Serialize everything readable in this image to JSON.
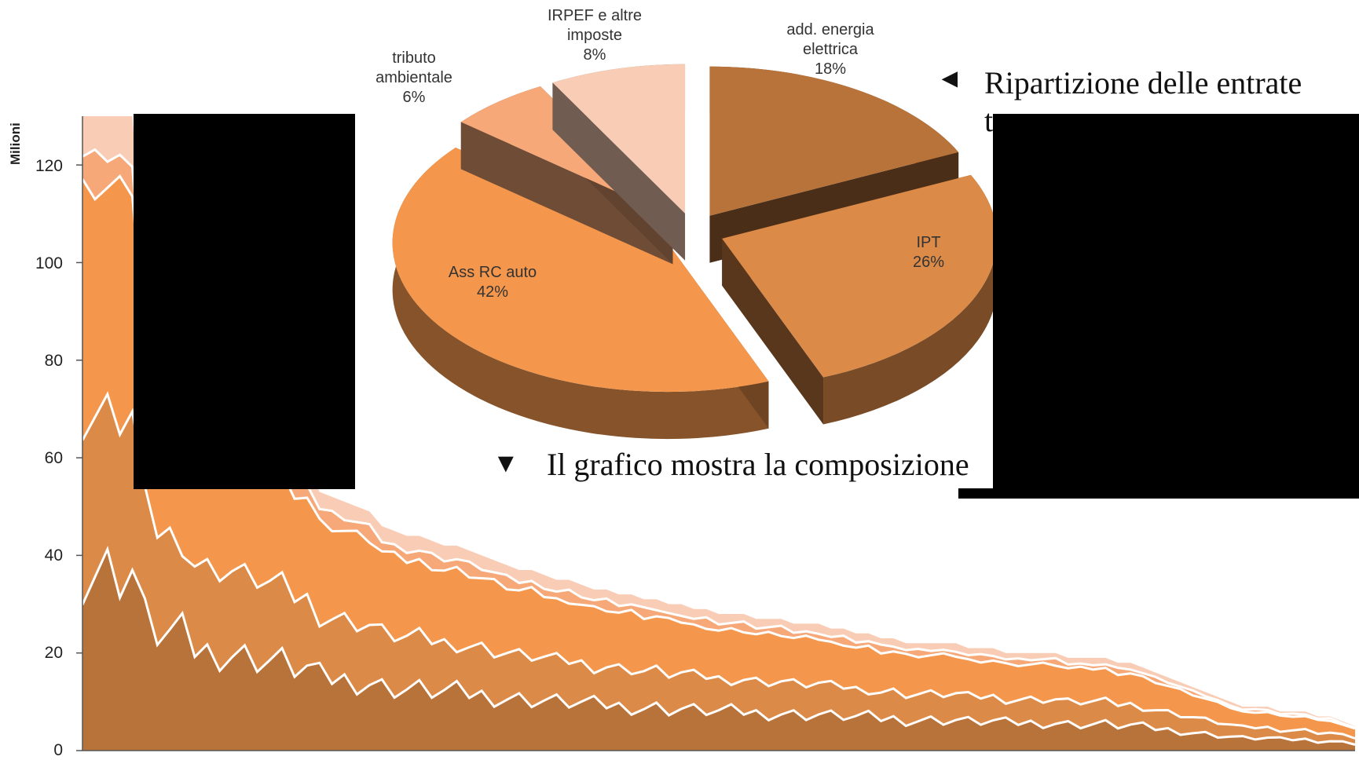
{
  "chart_data": [
    {
      "type": "area",
      "stacked": true,
      "ylabel": "Milioni",
      "ylim": [
        0,
        130
      ],
      "yticks": [
        0,
        20,
        40,
        60,
        80,
        100,
        120
      ],
      "grid": false,
      "colors": {
        "add_energia": "#b8733a",
        "ipt": "#dc8a47",
        "rc_auto": "#f4974c",
        "tributo": "#f6a878",
        "irpef": "#f9cdb5",
        "separator": "#ffffff"
      },
      "totals": [
        130,
        130,
        130,
        130,
        130,
        95,
        86,
        84,
        83,
        73,
        71,
        71,
        70,
        68,
        67,
        65,
        64,
        60,
        59,
        53,
        52,
        51,
        50,
        49,
        46,
        45,
        44,
        44,
        43,
        42,
        42,
        41,
        40,
        39,
        38,
        37,
        37,
        36,
        35,
        35,
        34,
        33,
        33,
        32,
        32,
        31,
        31,
        30,
        30,
        29,
        29,
        28,
        28,
        28,
        27,
        27,
        27,
        26,
        26,
        26,
        25,
        25,
        24,
        24,
        23,
        23,
        22,
        22,
        22,
        22,
        22,
        21,
        21,
        21,
        20,
        20,
        20,
        20,
        20,
        19,
        19,
        19,
        19,
        18,
        18,
        17,
        16,
        15,
        14,
        13,
        12,
        11,
        10,
        9,
        9,
        9,
        8,
        8,
        8,
        7,
        7,
        6,
        5
      ]
    },
    {
      "type": "pie",
      "slices": [
        {
          "label_l1": "add. energia",
          "label_l2": "elettrica",
          "pct": "18%",
          "value": 18,
          "color": "#b8733a"
        },
        {
          "label_l1": "IPT",
          "label_l2": "",
          "pct": "26%",
          "value": 26,
          "color": "#dc8a47"
        },
        {
          "label_l1": "Ass RC auto",
          "label_l2": "",
          "pct": "42%",
          "value": 42,
          "color": "#f4974c"
        },
        {
          "label_l1": "tributo",
          "label_l2": "ambientale",
          "pct": "6%",
          "value": 6,
          "color": "#f6a878"
        },
        {
          "label_l1": "IRPEF e altre",
          "label_l2": "imposte",
          "pct": "8%",
          "value": 8,
          "color": "#f9cdb5"
        }
      ]
    }
  ],
  "captions": {
    "pie_arrow": "◄",
    "pie_caption": "Ripartizione delle entrate",
    "pie_caption_cut": "t",
    "area_arrow": "▼",
    "area_caption": "Il grafico mostra la composizione"
  },
  "axis": {
    "ytitle": "Milioni",
    "yticks": [
      "120",
      "100",
      "80",
      "60",
      "40",
      "20",
      "0"
    ]
  }
}
